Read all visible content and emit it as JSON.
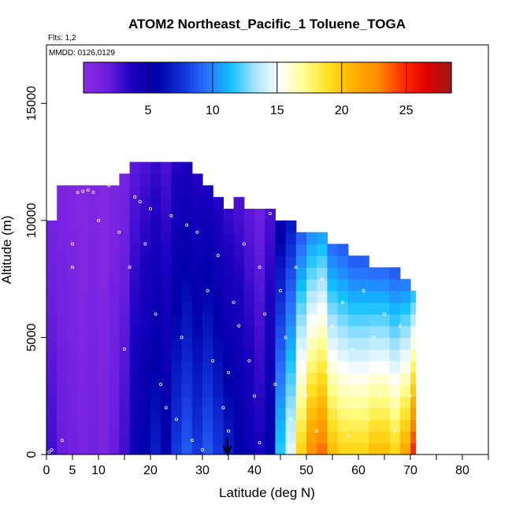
{
  "chart_data": {
    "type": "heatmap",
    "title": "ATOM2 Northeast_Pacific_1 Toluene_TOGA",
    "flights_label": "Flts: 1,2",
    "dates_label": "MMDD: 0126,0129",
    "xlabel": "Latitude (deg N)",
    "ylabel": "Altitude (m)",
    "xlim": [
      0,
      85
    ],
    "ylim": [
      0,
      17500
    ],
    "xticks": [
      0,
      5,
      10,
      20,
      30,
      40,
      50,
      60,
      70,
      80
    ],
    "xtick_labels": [
      "0",
      "5",
      "10",
      "20",
      "30",
      "40",
      "50",
      "60",
      "70",
      "80"
    ],
    "yticks": [
      0,
      5000,
      10000,
      15000
    ],
    "ytick_labels": [
      "0",
      "5000",
      "10000",
      "15000"
    ],
    "colorbar": {
      "range": [
        0,
        28.5
      ],
      "ticks": [
        5,
        10,
        15,
        20,
        25
      ],
      "tick_labels": [
        "5",
        "10",
        "15",
        "20",
        "25"
      ],
      "colors": [
        "#8a2be2",
        "#6a1ee0",
        "#1a00c0",
        "#0000a8",
        "#1030d8",
        "#2a70ff",
        "#10c0ff",
        "#a8e4ff",
        "#ffffff",
        "#ffff90",
        "#ffe020",
        "#ffb000",
        "#ff8c00",
        "#ff3000",
        "#e00000",
        "#9a1a1a"
      ]
    },
    "arrow_latitude": 34.8,
    "altitude_bin_tops": [
      500,
      1000,
      1500,
      2000,
      2500,
      3000,
      3500,
      4000,
      4500,
      5000,
      5500,
      6000,
      6500,
      7000,
      7500,
      8000,
      8500,
      9000,
      9500,
      10000,
      10500,
      11000,
      11500,
      12000,
      12500
    ],
    "lat_bins": [
      [
        0,
        2,
        3
      ],
      [
        2,
        4,
        2
      ],
      [
        4,
        6,
        1.5
      ],
      [
        6,
        8,
        1
      ],
      [
        8,
        10,
        1.5
      ],
      [
        10,
        12,
        1
      ],
      [
        12,
        14,
        2
      ],
      [
        14,
        16,
        3
      ],
      [
        16,
        18,
        5
      ],
      [
        18,
        20,
        6
      ],
      [
        20,
        22,
        7
      ],
      [
        22,
        24,
        6
      ],
      [
        24,
        26,
        8
      ],
      [
        26,
        28,
        9
      ],
      [
        28,
        30,
        8
      ],
      [
        30,
        32,
        9
      ],
      [
        32,
        34,
        8
      ],
      [
        34,
        36,
        7
      ],
      [
        36,
        38,
        6
      ],
      [
        38,
        40,
        5
      ],
      [
        40,
        42,
        4
      ],
      [
        42,
        44,
        6
      ],
      [
        44,
        46,
        12
      ],
      [
        46,
        48,
        15
      ],
      [
        48,
        50,
        20
      ],
      [
        50,
        52,
        23
      ],
      [
        52,
        54,
        24
      ],
      [
        54,
        56,
        21
      ],
      [
        56,
        58,
        20
      ],
      [
        58,
        60,
        20
      ],
      [
        60,
        62,
        20
      ],
      [
        62,
        64,
        21
      ],
      [
        64,
        66,
        21
      ],
      [
        66,
        68,
        20
      ],
      [
        68,
        70,
        22
      ],
      [
        70,
        71,
        26
      ]
    ],
    "column_tops": [
      10000,
      11500,
      11500,
      11500,
      11500,
      11500,
      11500,
      12000,
      12500,
      12500,
      12500,
      12500,
      12500,
      12500,
      12000,
      11500,
      11000,
      10500,
      11000,
      10500,
      10500,
      10500,
      10000,
      10000,
      9500,
      9500,
      9500,
      9000,
      9000,
      8500,
      8500,
      8000,
      8000,
      8000,
      7500,
      7000
    ],
    "observations": [
      [
        0.5,
        100
      ],
      [
        1,
        200
      ],
      [
        3,
        600
      ],
      [
        5,
        8000
      ],
      [
        5,
        9000
      ],
      [
        6,
        11200
      ],
      [
        7,
        11250
      ],
      [
        8,
        11300
      ],
      [
        9,
        11200
      ],
      [
        10,
        10000
      ],
      [
        11,
        12000
      ],
      [
        12,
        11500
      ],
      [
        14,
        9500
      ],
      [
        15,
        4500
      ],
      [
        16,
        8000
      ],
      [
        17,
        11000
      ],
      [
        18,
        10800
      ],
      [
        19,
        9000
      ],
      [
        20,
        10500
      ],
      [
        21,
        6000
      ],
      [
        22,
        3000
      ],
      [
        23,
        2000
      ],
      [
        24,
        10200
      ],
      [
        25,
        1500
      ],
      [
        26,
        5000
      ],
      [
        27,
        9800
      ],
      [
        28,
        600
      ],
      [
        29,
        9500
      ],
      [
        30,
        200
      ],
      [
        31,
        7000
      ],
      [
        32,
        4000
      ],
      [
        33,
        8500
      ],
      [
        34,
        2000
      ],
      [
        35,
        3500
      ],
      [
        35,
        1000
      ],
      [
        36,
        6500
      ],
      [
        37,
        5500
      ],
      [
        38,
        9000
      ],
      [
        39,
        4000
      ],
      [
        40,
        2500
      ],
      [
        41,
        8000
      ],
      [
        41,
        500
      ],
      [
        42,
        6000
      ],
      [
        43,
        10300
      ],
      [
        44,
        3000
      ],
      [
        45,
        7000
      ],
      [
        46,
        5000
      ],
      [
        47,
        1500
      ],
      [
        48,
        8000
      ],
      [
        49,
        4500
      ],
      [
        50,
        2500
      ],
      [
        51,
        6000
      ],
      [
        52,
        1000
      ],
      [
        53,
        7500
      ],
      [
        54,
        3500
      ],
      [
        55,
        5500
      ],
      [
        56,
        2000
      ],
      [
        57,
        6500
      ],
      [
        58,
        800
      ],
      [
        59,
        4500
      ],
      [
        60,
        3000
      ],
      [
        61,
        7000
      ],
      [
        62,
        1500
      ],
      [
        63,
        5000
      ],
      [
        64,
        2500
      ],
      [
        65,
        6000
      ],
      [
        66,
        4000
      ],
      [
        67,
        1000
      ],
      [
        68,
        5500
      ],
      [
        69,
        3000
      ],
      [
        70,
        2500
      ]
    ]
  }
}
